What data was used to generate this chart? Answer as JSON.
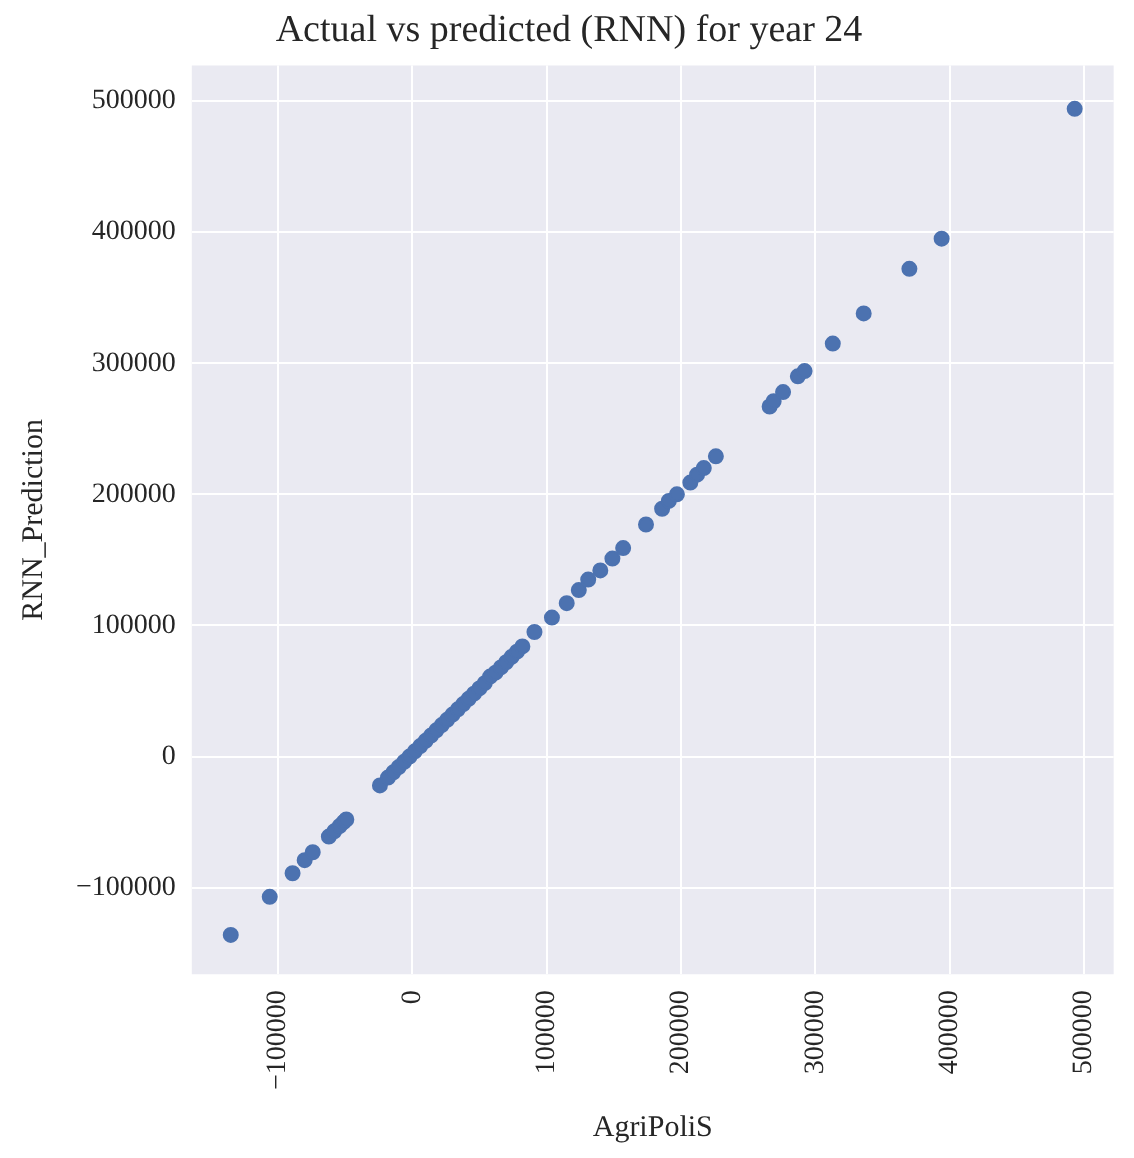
{
  "chart_data": {
    "type": "scatter",
    "title": "Actual vs predicted (RNN) for year 24",
    "xlabel": "AgriPoliS",
    "ylabel": "RNN_Prediction",
    "x": [
      -135000,
      -106000,
      -89000,
      -80000,
      -74000,
      -62000,
      -58000,
      -54000,
      -51000,
      -49000,
      -24000,
      -18000,
      -14000,
      -10000,
      -6000,
      -2000,
      2000,
      6000,
      10000,
      14000,
      18000,
      22000,
      26000,
      30000,
      34000,
      38000,
      42000,
      46000,
      50000,
      54000,
      58000,
      62000,
      66000,
      70000,
      74000,
      78000,
      82000,
      91000,
      104000,
      115000,
      124000,
      131000,
      140000,
      149000,
      157000,
      174000,
      186000,
      191000,
      197000,
      207000,
      212000,
      217000,
      226000,
      266000,
      269000,
      276000,
      287000,
      292000,
      313000,
      336000,
      370000,
      394000,
      493000
    ],
    "series": [
      {
        "color": "#4c72b0",
        "values": [
          -136000,
          -107000,
          -89000,
          -79000,
          -73000,
          -61000,
          -57000,
          -53000,
          -50000,
          -48000,
          -22000,
          -16000,
          -12000,
          -8000,
          -4000,
          0,
          4000,
          8000,
          12000,
          16000,
          20000,
          24000,
          28000,
          32000,
          36000,
          40000,
          44000,
          48000,
          52000,
          56000,
          61000,
          64000,
          68000,
          72000,
          76000,
          80000,
          84000,
          95000,
          106000,
          117000,
          127000,
          135000,
          142000,
          151000,
          159000,
          177000,
          189000,
          195000,
          200000,
          209000,
          215000,
          220000,
          229000,
          267000,
          271000,
          278000,
          290000,
          294000,
          315000,
          338000,
          372000,
          395000,
          494000
        ]
      }
    ],
    "xlim": [
      -164000,
      522000
    ],
    "ylim": [
      -166000,
      527000
    ],
    "xticks": [
      -100000,
      0,
      100000,
      200000,
      300000,
      400000,
      500000
    ],
    "yticks": [
      -100000,
      0,
      100000,
      200000,
      300000,
      400000,
      500000
    ],
    "grid": true,
    "legend": false,
    "marker": "circle"
  }
}
